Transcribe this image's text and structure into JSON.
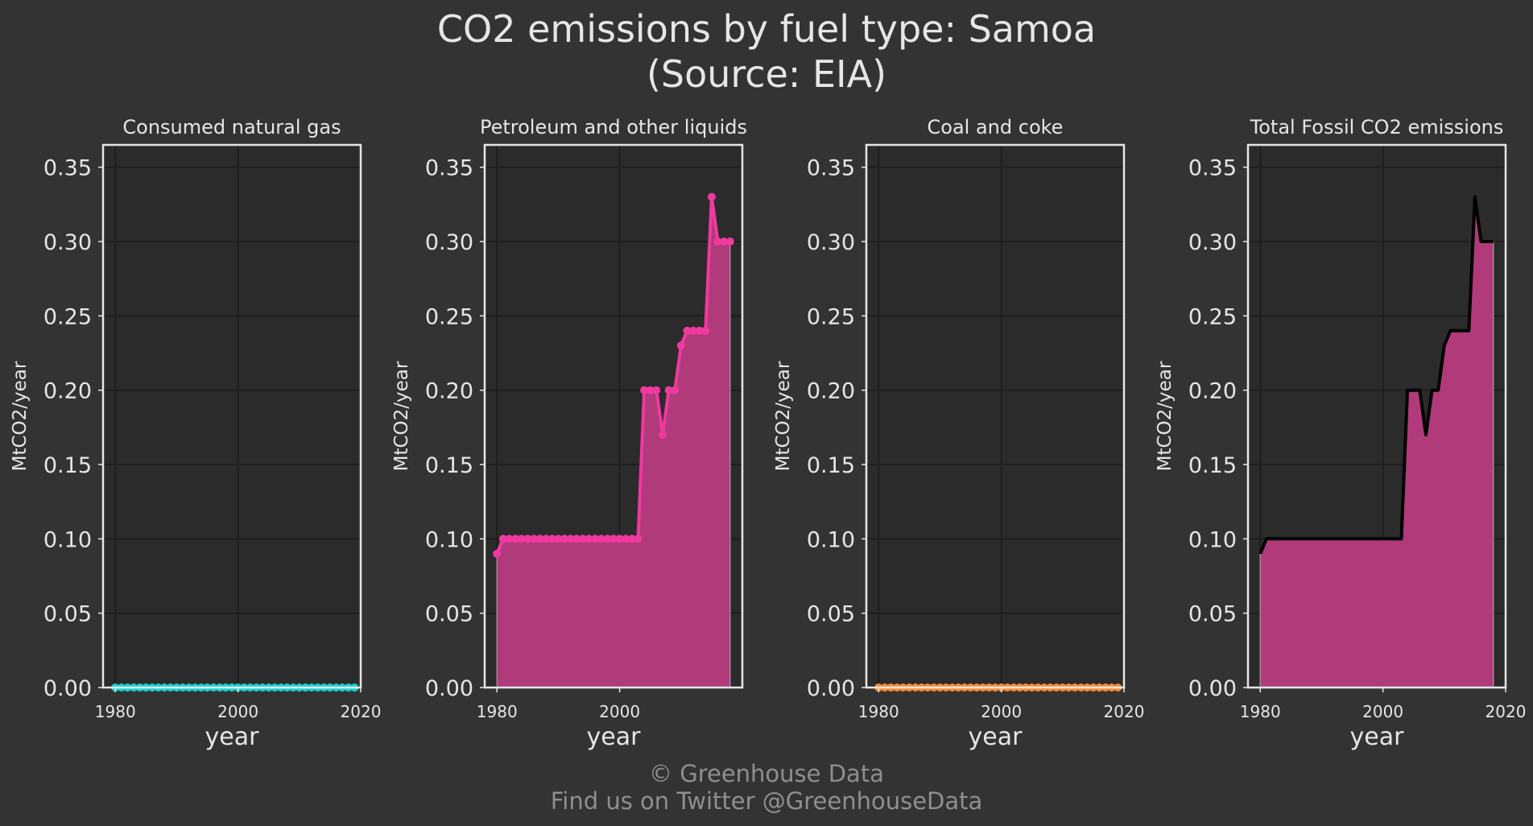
{
  "title_line1": "CO2 emissions by fuel type: Samoa",
  "title_line2": "(Source: EIA)",
  "credit_line1": "© Greenhouse Data",
  "credit_line2": "Find us on Twitter @GreenhouseData",
  "colors": {
    "background": "#333333",
    "plot_background": "#2b2b2b",
    "grid": "#1e1e1e",
    "frame": "#e6e6e6",
    "natural_gas": "#19d3d3",
    "petroleum_line": "#f0399f",
    "petroleum_fill": "#b03a7a",
    "coal": "#ff8a2e",
    "total_line": "#000000",
    "total_fill": "#b03a7a"
  },
  "chart_data": [
    {
      "type": "line",
      "title": "Consumed natural gas",
      "xlabel": "year",
      "ylabel": "MtCO2/year",
      "xlim": [
        1978,
        2020
      ],
      "ylim": [
        0,
        0.365
      ],
      "xticks": [
        "1980",
        "2000",
        "2020"
      ],
      "yticks": [
        "0.00",
        "0.05",
        "0.10",
        "0.15",
        "0.20",
        "0.25",
        "0.30",
        "0.35"
      ],
      "grid": true,
      "x": [
        1980,
        1981,
        1982,
        1983,
        1984,
        1985,
        1986,
        1987,
        1988,
        1989,
        1990,
        1991,
        1992,
        1993,
        1994,
        1995,
        1996,
        1997,
        1998,
        1999,
        2000,
        2001,
        2002,
        2003,
        2004,
        2005,
        2006,
        2007,
        2008,
        2009,
        2010,
        2011,
        2012,
        2013,
        2014,
        2015,
        2016,
        2017,
        2018,
        2019
      ],
      "values": [
        0,
        0,
        0,
        0,
        0,
        0,
        0,
        0,
        0,
        0,
        0,
        0,
        0,
        0,
        0,
        0,
        0,
        0,
        0,
        0,
        0,
        0,
        0,
        0,
        0,
        0,
        0,
        0,
        0,
        0,
        0,
        0,
        0,
        0,
        0,
        0,
        0,
        0,
        0,
        0
      ]
    },
    {
      "type": "area",
      "title": "Petroleum and other liquids",
      "xlabel": "year",
      "ylabel": "MtCO2/year",
      "xlim": [
        1978,
        2020
      ],
      "ylim": [
        0,
        0.365
      ],
      "xticks": [
        "1980",
        "2000"
      ],
      "yticks": [
        "0.00",
        "0.05",
        "0.10",
        "0.15",
        "0.20",
        "0.25",
        "0.30",
        "0.35"
      ],
      "grid": true,
      "x": [
        1980,
        1981,
        1982,
        1983,
        1984,
        1985,
        1986,
        1987,
        1988,
        1989,
        1990,
        1991,
        1992,
        1993,
        1994,
        1995,
        1996,
        1997,
        1998,
        1999,
        2000,
        2001,
        2002,
        2003,
        2004,
        2005,
        2006,
        2007,
        2008,
        2009,
        2010,
        2011,
        2012,
        2013,
        2014,
        2015,
        2016,
        2017,
        2018
      ],
      "values": [
        0.09,
        0.1,
        0.1,
        0.1,
        0.1,
        0.1,
        0.1,
        0.1,
        0.1,
        0.1,
        0.1,
        0.1,
        0.1,
        0.1,
        0.1,
        0.1,
        0.1,
        0.1,
        0.1,
        0.1,
        0.1,
        0.1,
        0.1,
        0.1,
        0.2,
        0.2,
        0.2,
        0.17,
        0.2,
        0.2,
        0.23,
        0.24,
        0.24,
        0.24,
        0.24,
        0.33,
        0.3,
        0.3,
        0.3
      ]
    },
    {
      "type": "line",
      "title": "Coal and coke",
      "xlabel": "year",
      "ylabel": "MtCO2/year",
      "xlim": [
        1978,
        2020
      ],
      "ylim": [
        0,
        0.365
      ],
      "xticks": [
        "1980",
        "2000",
        "2020"
      ],
      "yticks": [
        "0.00",
        "0.05",
        "0.10",
        "0.15",
        "0.20",
        "0.25",
        "0.30",
        "0.35"
      ],
      "grid": true,
      "x": [
        1980,
        1981,
        1982,
        1983,
        1984,
        1985,
        1986,
        1987,
        1988,
        1989,
        1990,
        1991,
        1992,
        1993,
        1994,
        1995,
        1996,
        1997,
        1998,
        1999,
        2000,
        2001,
        2002,
        2003,
        2004,
        2005,
        2006,
        2007,
        2008,
        2009,
        2010,
        2011,
        2012,
        2013,
        2014,
        2015,
        2016,
        2017,
        2018,
        2019
      ],
      "values": [
        0,
        0,
        0,
        0,
        0,
        0,
        0,
        0,
        0,
        0,
        0,
        0,
        0,
        0,
        0,
        0,
        0,
        0,
        0,
        0,
        0,
        0,
        0,
        0,
        0,
        0,
        0,
        0,
        0,
        0,
        0,
        0,
        0,
        0,
        0,
        0,
        0,
        0,
        0,
        0
      ]
    },
    {
      "type": "area",
      "title": "Total Fossil CO2 emissions",
      "xlabel": "year",
      "ylabel": "MtCO2/year",
      "xlim": [
        1978,
        2020
      ],
      "ylim": [
        0,
        0.365
      ],
      "xticks": [
        "1980",
        "2000",
        "2020"
      ],
      "yticks": [
        "0.00",
        "0.05",
        "0.10",
        "0.15",
        "0.20",
        "0.25",
        "0.30",
        "0.35"
      ],
      "grid": true,
      "x": [
        1980,
        1981,
        1982,
        1983,
        1984,
        1985,
        1986,
        1987,
        1988,
        1989,
        1990,
        1991,
        1992,
        1993,
        1994,
        1995,
        1996,
        1997,
        1998,
        1999,
        2000,
        2001,
        2002,
        2003,
        2004,
        2005,
        2006,
        2007,
        2008,
        2009,
        2010,
        2011,
        2012,
        2013,
        2014,
        2015,
        2016,
        2017,
        2018
      ],
      "values": [
        0.09,
        0.1,
        0.1,
        0.1,
        0.1,
        0.1,
        0.1,
        0.1,
        0.1,
        0.1,
        0.1,
        0.1,
        0.1,
        0.1,
        0.1,
        0.1,
        0.1,
        0.1,
        0.1,
        0.1,
        0.1,
        0.1,
        0.1,
        0.1,
        0.2,
        0.2,
        0.2,
        0.17,
        0.2,
        0.2,
        0.23,
        0.24,
        0.24,
        0.24,
        0.24,
        0.33,
        0.3,
        0.3,
        0.3
      ]
    }
  ]
}
